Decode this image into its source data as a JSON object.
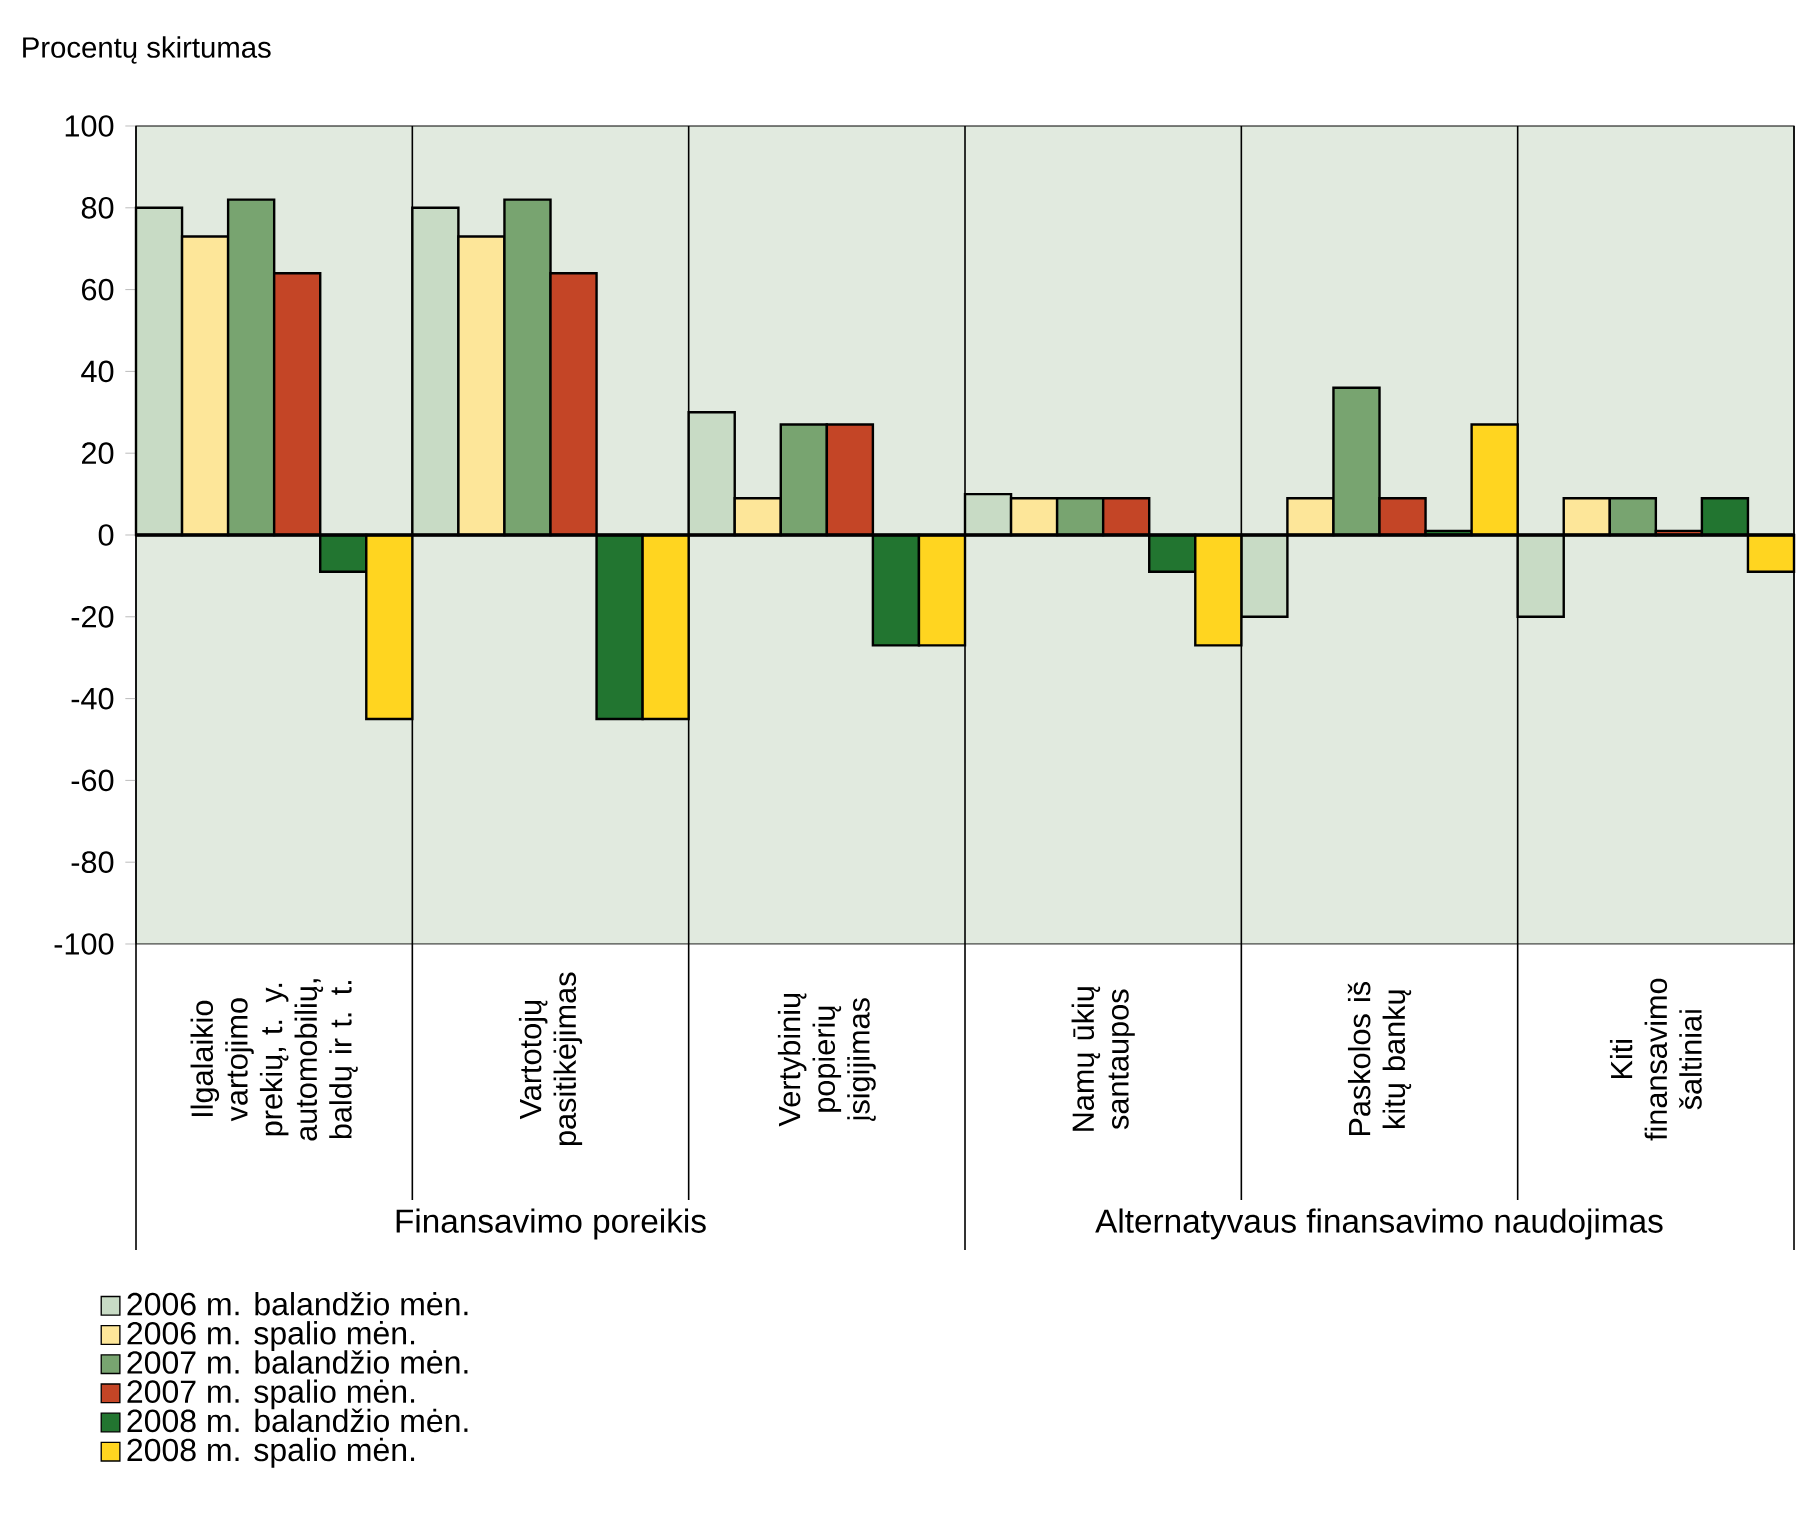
{
  "chart_data": {
    "type": "bar",
    "ylabel": "Procentų skirtumas",
    "categories": [
      "Ilgalaikio vartojimo prekių, t. y. automobilių, baldų ir t. t.",
      "Vartotojų pasitikėjimas",
      "Vertybinių popierių įsigijimas",
      "Namų ūkių santaupos",
      "Paskolos iš kitų bankų",
      "Kiti finansavimo šaltiniai"
    ],
    "series": [
      {
        "name": "2006 m. balandžio mėn.",
        "color": "#c8dbc5",
        "values": [
          80,
          80,
          30,
          10,
          -20,
          -20
        ]
      },
      {
        "name": "2006 m. spalio mėn.",
        "color": "#fde699",
        "values": [
          73,
          73,
          9,
          9,
          9,
          9
        ]
      },
      {
        "name": "2007 m. balandžio mėn.",
        "color": "#78a470",
        "values": [
          82,
          82,
          27,
          9,
          36,
          9
        ]
      },
      {
        "name": "2007 m. spalio mėn.",
        "color": "#c44526",
        "values": [
          64,
          64,
          27,
          9,
          9,
          1
        ]
      },
      {
        "name": "2008 m. balandžio mėn.",
        "color": "#227530",
        "values": [
          -9,
          -45,
          -27,
          -9,
          1,
          9
        ]
      },
      {
        "name": "2008 m. spalio mėn.",
        "color": "#ffd520",
        "values": [
          -45,
          -45,
          -27,
          -27,
          27,
          -9
        ]
      }
    ],
    "ylim": [
      -100,
      100
    ],
    "yticks": [
      -100,
      -80,
      -60,
      -40,
      -20,
      0,
      20,
      40,
      60,
      80,
      100
    ],
    "grid": "x",
    "legend": "bottom left",
    "annotations": [
      "Finansavimo poreikis",
      "Alternatyvaus finansavimo naudojimas"
    ]
  }
}
